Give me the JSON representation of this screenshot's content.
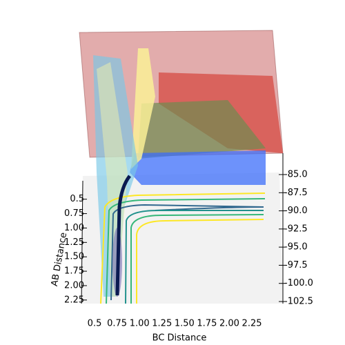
{
  "chart_data": {
    "type": "surface3d",
    "xlabel": "BC Distance",
    "ylabel": "AB Distance",
    "xlim": [
      0.4,
      2.5
    ],
    "ylim": [
      0.3,
      2.3
    ],
    "zlim": [
      -102.5,
      -85
    ],
    "xticks": [
      0.5,
      0.75,
      {
        "value": 1,
        "label": "1.00"
      },
      1.25,
      {
        "value": 1.5,
        "label": "1.50"
      },
      1.75,
      {
        "value": 2,
        "label": "2.00"
      },
      2.25
    ],
    "yticks": [
      0.5,
      0.75,
      {
        "value": 1,
        "label": "1.00"
      },
      1.25,
      {
        "value": 1.5,
        "label": "1.50"
      },
      1.75,
      {
        "value": 2,
        "label": "2.00"
      },
      2.25
    ],
    "zticks": [
      {
        "value": -85,
        "label": "-85.0"
      },
      {
        "value": -87.5,
        "label": "-87.5"
      },
      {
        "value": -90,
        "label": "-90.0"
      },
      {
        "value": -92.5,
        "label": "-92.5"
      },
      {
        "value": -95,
        "label": "-95.0"
      },
      {
        "value": -97.5,
        "label": "-97.5"
      },
      {
        "value": -100,
        "label": "-100.0"
      },
      {
        "value": -102.5,
        "label": "-102.5"
      }
    ],
    "grid": true
  }
}
